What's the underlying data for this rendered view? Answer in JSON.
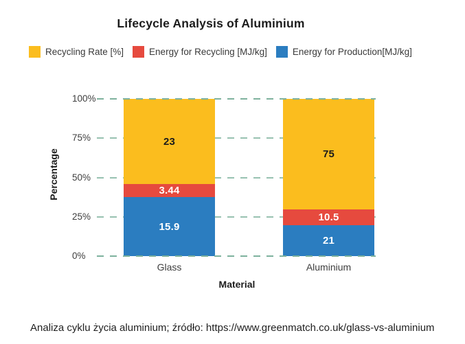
{
  "title": "Lifecycle Analysis of Aluminium",
  "legend": [
    {
      "label": "Recycling Rate [%]",
      "color": "#FBBD1E"
    },
    {
      "label": "Energy for Recycling [MJ/kg]",
      "color": "#E64A3E"
    },
    {
      "label": "Energy for Production[MJ/kg]",
      "color": "#2B7DC0"
    }
  ],
  "chart_data": {
    "type": "bar",
    "stacked": true,
    "normalized_to_100_percent": true,
    "title": "Lifecycle Analysis of Aluminium",
    "categories": [
      "Glass",
      "Aluminium"
    ],
    "series": [
      {
        "name": "Energy for Production[MJ/kg]",
        "color": "#2B7DC0",
        "label_color": "#ffffff",
        "values": [
          15.9,
          21
        ]
      },
      {
        "name": "Energy for Recycling [MJ/kg]",
        "color": "#E64A3E",
        "label_color": "#ffffff",
        "values": [
          3.44,
          10.5
        ]
      },
      {
        "name": "Recycling Rate [%]",
        "color": "#FBBD1E",
        "label_color": "#1b1b1b",
        "values": [
          23,
          75
        ]
      }
    ],
    "xlabel": "Material",
    "ylabel": "Percentage",
    "y_ticks": [
      "0%",
      "25%",
      "50%",
      "75%",
      "100%"
    ],
    "ylim": [
      0,
      100
    ],
    "grid": "horizontal-dashed",
    "gridline_color": "#97c1b0",
    "legend_position": "top-left"
  },
  "caption": "Analiza cyklu życia aluminium; źródło: https://www.greenmatch.co.uk/glass-vs-aluminium"
}
